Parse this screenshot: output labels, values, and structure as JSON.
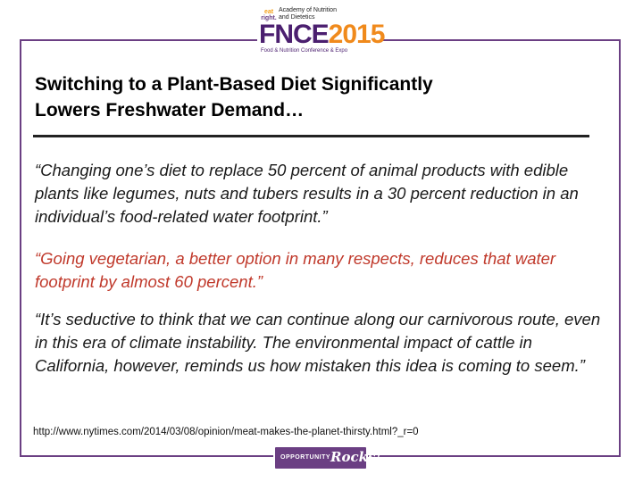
{
  "header": {
    "logo_eat": "eat",
    "logo_right": "right.",
    "logo_academy_line1": "Academy of Nutrition",
    "logo_academy_line2": "and Dietetics",
    "logo_fnce": "FNCE",
    "logo_year": "2015",
    "logo_subtitle": "Food & Nutrition Conference & Expo"
  },
  "slide": {
    "title_line1": "Switching to a Plant-Based Diet Significantly",
    "title_line2": "Lowers Freshwater Demand…",
    "quote1": "“Changing one’s diet to replace 50 percent of animal products with edible plants like legumes, nuts and tubers results in a 30 percent reduction in an individual’s food-related water footprint.”",
    "quote2": "“Going vegetarian, a better option in many respects, reduces that water footprint by almost 60 percent.”",
    "quote3": "“It’s seductive to think that we can continue along our carnivorous route, even in this era of climate instability. The environmental impact of cattle in California, however, reminds us how mistaken this idea is coming to seem.”",
    "source_url": "http://www.nytimes.com/2014/03/08/opinion/meat-makes-the-planet-thirsty.html?_r=0"
  },
  "footer": {
    "opportunity": "OPPORTUNITY",
    "rocks": "Rocks!"
  },
  "colors": {
    "frame": "#6b3f83",
    "highlight_quote": "#c0392b",
    "logo_purple": "#4b1f6f",
    "logo_orange": "#f08a1c"
  }
}
